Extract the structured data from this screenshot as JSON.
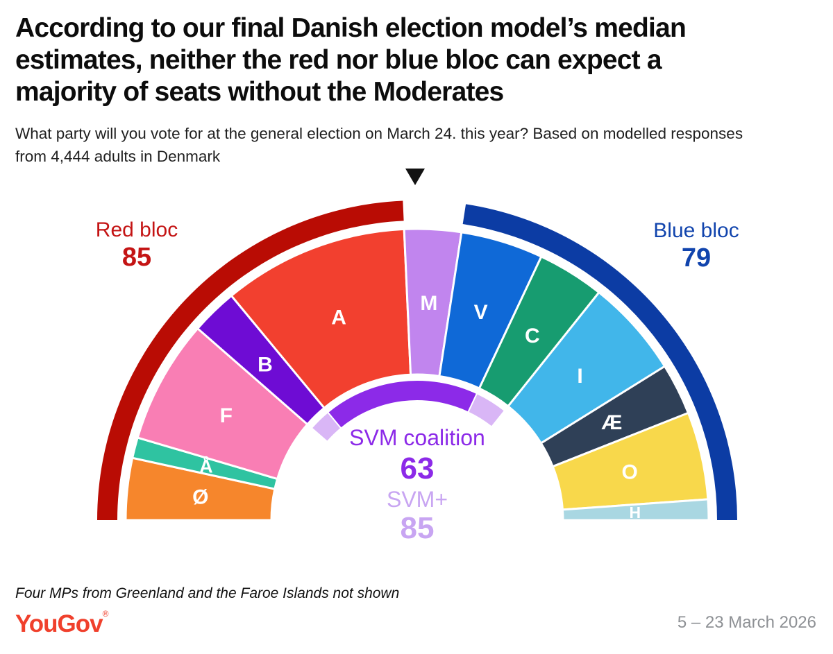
{
  "header": {
    "title_lines": [
      "According to our final Danish election model’s median",
      "estimates, neither the red nor blue bloc can expect a",
      "majority of seats without the Moderates"
    ],
    "subtitle_lines": [
      "What party will you vote for at the general election on March 24. this year? Based on modelled responses",
      "from 4,444 adults in Denmark"
    ]
  },
  "chart_data": {
    "type": "parliament-arc",
    "title": "According to our final Danish election model’s median estimates, neither the red nor blue bloc can expect a majority of seats without the Moderates",
    "total_seats_shown": 175,
    "legend_position": "none",
    "pointer_marker": "black triangle pointing down at top center",
    "blocs": {
      "red": {
        "label": "Red bloc",
        "value": "85",
        "band_color": "#b90c04",
        "label_color": "#c41414"
      },
      "blue": {
        "label": "Blue bloc",
        "value": "79",
        "band_color": "#0c3ca4",
        "label_color": "#1144ad"
      }
    },
    "parties": [
      {
        "letter": "Ø",
        "estimated_seats": 12,
        "color": "#f6862c",
        "bloc": "red"
      },
      {
        "letter": "Å",
        "estimated_seats": 4,
        "color": "#2fc3a1",
        "bloc": "red"
      },
      {
        "letter": "F",
        "estimated_seats": 24,
        "color": "#f97eb4",
        "bloc": "red"
      },
      {
        "letter": "B",
        "estimated_seats": 9,
        "color": "#6e0cd4",
        "bloc": "red"
      },
      {
        "letter": "A",
        "estimated_seats": 36,
        "color": "#f2402f",
        "bloc": "red"
      },
      {
        "letter": "M",
        "estimated_seats": 11,
        "color": "#c185ee",
        "bloc": "none"
      },
      {
        "letter": "V",
        "estimated_seats": 16,
        "color": "#0f69d7",
        "bloc": "blue"
      },
      {
        "letter": "C",
        "estimated_seats": 13,
        "color": "#179c70",
        "bloc": "blue"
      },
      {
        "letter": "I",
        "estimated_seats": 19,
        "color": "#41b6ea",
        "bloc": "blue"
      },
      {
        "letter": "Æ",
        "estimated_seats": 10,
        "color": "#2f4057",
        "bloc": "blue"
      },
      {
        "letter": "O",
        "estimated_seats": 17,
        "color": "#f8d84b",
        "bloc": "blue"
      },
      {
        "letter": "H",
        "estimated_seats": 4,
        "color": "#a9d7e2",
        "bloc": "blue"
      }
    ],
    "coalitions": {
      "svm": {
        "label": "SVM coalition",
        "value": "63",
        "color": "#8c2ae8",
        "members": [
          "A",
          "M",
          "V"
        ]
      },
      "svm_plus": {
        "label": "SVM+",
        "value": "85",
        "color": "#d9b6f6",
        "extra_members": [
          "B",
          "C"
        ],
        "text_color": "#c8a5f2"
      }
    }
  },
  "footnote": "Four MPs from Greenland and the Faroe Islands not shown",
  "branding": {
    "logo": "YouGov",
    "registered": "®",
    "color": "#f0402c"
  },
  "date_range": "5 – 23 March 2026"
}
